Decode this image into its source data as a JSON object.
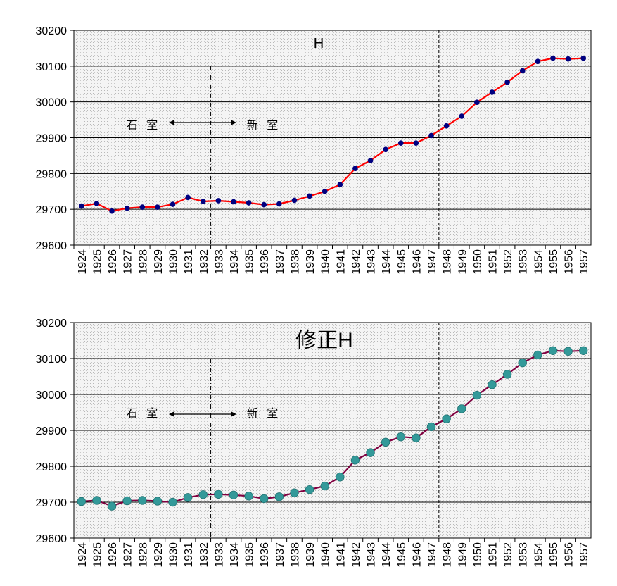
{
  "chart_data": [
    {
      "type": "line",
      "title": "H",
      "xlabel": "",
      "ylabel": "",
      "ylim": [
        29600,
        30200
      ],
      "yticks": [
        "30200",
        "30100",
        "30000",
        "29900",
        "29800",
        "29700",
        "29600"
      ],
      "categories": [
        "1924",
        "1925",
        "1926",
        "1927",
        "1928",
        "1929",
        "1930",
        "1931",
        "1932",
        "1933",
        "1934",
        "1935",
        "1936",
        "1937",
        "1938",
        "1939",
        "1940",
        "1941",
        "1942",
        "1943",
        "1944",
        "1945",
        "1946",
        "1947",
        "1948",
        "1949",
        "1950",
        "1951",
        "1952",
        "1953",
        "1954",
        "1955",
        "1956",
        "1957"
      ],
      "series": [
        {
          "name": "H",
          "values": [
            29709,
            29716,
            29695,
            29703,
            29706,
            29706,
            29714,
            29733,
            29722,
            29724,
            29721,
            29718,
            29713,
            29715,
            29725,
            29737,
            29750,
            29769,
            29814,
            29836,
            29867,
            29885,
            29885,
            29906,
            29933,
            29960,
            29999,
            30027,
            30055,
            30087,
            30113,
            30122,
            30120,
            30122
          ]
        }
      ],
      "grid": true,
      "markers": "small-navy-dot",
      "line_color": "#ff0000",
      "marker_color": "#000080",
      "annotations": {
        "left": "石 室",
        "right": "新 室"
      },
      "separators": [
        "1932",
        "1947"
      ]
    },
    {
      "type": "line",
      "title": "修正H",
      "xlabel": "",
      "ylabel": "",
      "ylim": [
        29600,
        30200
      ],
      "yticks": [
        "30200",
        "30100",
        "30000",
        "29900",
        "29800",
        "29700",
        "29600"
      ],
      "categories": [
        "1924",
        "1925",
        "1926",
        "1927",
        "1928",
        "1929",
        "1930",
        "1931",
        "1932",
        "1933",
        "1934",
        "1935",
        "1936",
        "1937",
        "1938",
        "1939",
        "1940",
        "1941",
        "1942",
        "1943",
        "1944",
        "1945",
        "1946",
        "1947",
        "1948",
        "1949",
        "1950",
        "1951",
        "1952",
        "1953",
        "1954",
        "1955",
        "1956",
        "1957"
      ],
      "series": [
        {
          "name": "修正H",
          "values": [
            29702,
            29705,
            29689,
            29704,
            29705,
            29703,
            29700,
            29713,
            29721,
            29722,
            29720,
            29717,
            29710,
            29715,
            29726,
            29735,
            29745,
            29770,
            29817,
            29838,
            29867,
            29882,
            29879,
            29910,
            29932,
            29960,
            29998,
            30027,
            30056,
            30088,
            30110,
            30122,
            30120,
            30122
          ]
        }
      ],
      "grid": true,
      "markers": "large-teal-dot",
      "line_color": "#800040",
      "marker_color": "#339999",
      "annotations": {
        "left": "石 室",
        "right": "新 室"
      },
      "separators": [
        "1932",
        "1947"
      ]
    }
  ]
}
